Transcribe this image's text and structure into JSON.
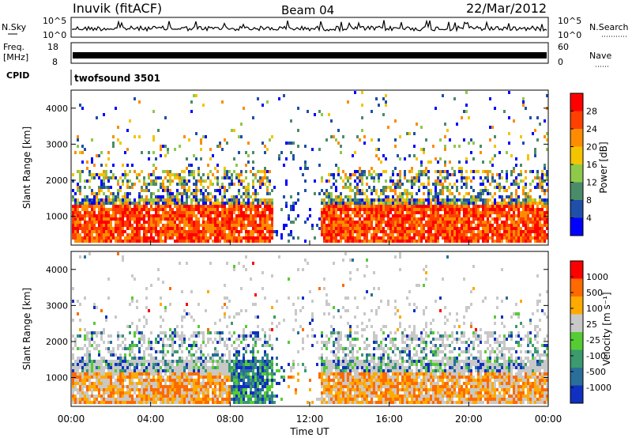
{
  "header": {
    "site": "Inuvik (fitACF)",
    "beam": "Beam 04",
    "date": "22/Mar/2012"
  },
  "nsky_panel": {
    "left_label": "N.Sky",
    "right_label": "N.Search",
    "left_ticks": [
      "10^5",
      "10^0"
    ],
    "right_ticks": [
      "10^5",
      "10^0"
    ]
  },
  "freq_panel": {
    "left_label_top": "Freq.",
    "left_label_unit": "[MHz]",
    "right_label": "Nave",
    "left_ticks": [
      "18",
      "8"
    ],
    "right_ticks": [
      "60",
      "0"
    ]
  },
  "cpid_panel": {
    "label": "CPID",
    "program": "twofsound 3501"
  },
  "colors": {
    "power_scale": [
      "#0000ff",
      "#1f4fa8",
      "#4a8c6a",
      "#8fc94a",
      "#f5c400",
      "#ff8c00",
      "#ff4000",
      "#ff0000"
    ],
    "velocity_scale": [
      "#1030c0",
      "#2a6f9a",
      "#3c9a6e",
      "#55cc33",
      "#c8c8c8",
      "#ffaa00",
      "#ff6a00",
      "#ff0000"
    ]
  },
  "chart_data": [
    {
      "type": "heatmap",
      "panel": "power",
      "ylabel": "Slant Range [km]",
      "yticks": [
        "1000",
        "2000",
        "3000",
        "4000"
      ],
      "ylim": [
        200,
        4500
      ],
      "xlim": [
        "00:00",
        "24:00"
      ],
      "colorbar_label": "Power [dB]",
      "colorbar_ticks": [
        "4",
        "8",
        "12",
        "16",
        "20",
        "24",
        "28"
      ]
    },
    {
      "type": "heatmap",
      "panel": "velocity",
      "ylabel": "Slant Range [km]",
      "yticks": [
        "1000",
        "2000",
        "3000",
        "4000"
      ],
      "ylim": [
        200,
        4500
      ],
      "xlim": [
        "00:00",
        "24:00"
      ],
      "xlabel": "Time UT",
      "xticks": [
        "00:00",
        "04:00",
        "08:00",
        "12:00",
        "16:00",
        "20:00",
        "00:00"
      ],
      "colorbar_label": "Velocity [m s⁻¹]",
      "colorbar_ticks": [
        "1000",
        "500",
        "100",
        "25",
        "-25",
        "-100",
        "-500",
        "-1000"
      ]
    }
  ]
}
